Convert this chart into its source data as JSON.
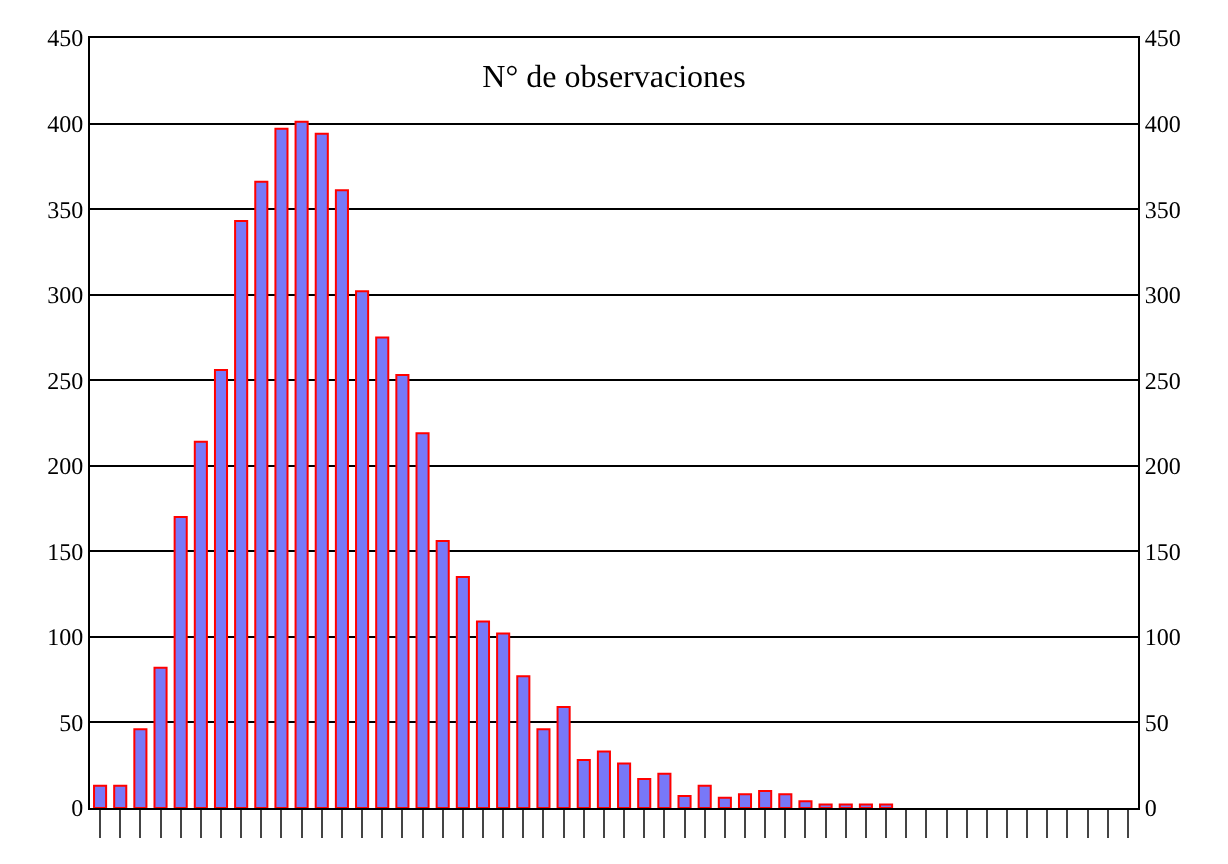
{
  "chart_data": {
    "type": "bar",
    "title": "N° de observaciones",
    "categories": [
      null,
      null,
      null,
      null,
      null,
      null,
      null,
      null,
      null,
      null,
      null,
      null,
      null,
      null,
      null,
      null,
      null,
      null,
      null,
      null,
      null,
      null,
      null,
      null,
      null,
      null,
      null,
      null,
      null,
      null,
      null,
      null,
      null,
      null,
      null,
      null,
      null,
      null,
      null,
      null,
      null,
      null,
      null,
      null,
      null,
      null,
      null,
      null,
      null,
      null,
      null,
      null
    ],
    "series": [
      {
        "color": "#7878f8",
        "values": [
          13,
          13,
          46,
          82,
          170,
          214,
          256,
          343,
          366,
          397,
          401,
          394,
          361,
          302,
          275,
          253,
          219,
          156,
          135,
          109,
          102,
          77,
          46,
          59,
          28,
          33,
          26,
          17,
          20,
          7,
          13,
          6,
          8,
          10,
          8,
          4,
          2,
          2,
          2,
          2,
          null,
          null,
          null,
          null,
          null,
          null,
          null,
          null,
          null,
          null,
          null,
          null
        ]
      }
    ],
    "ylim": [
      0,
      450
    ],
    "yticks": [
      0,
      50,
      100,
      150,
      200,
      250,
      300,
      350,
      400,
      450
    ],
    "y2lim": [
      0,
      450
    ],
    "y2ticks": [
      0,
      50,
      100,
      150,
      200,
      250,
      300,
      350,
      400,
      450
    ],
    "grid": "y"
  }
}
